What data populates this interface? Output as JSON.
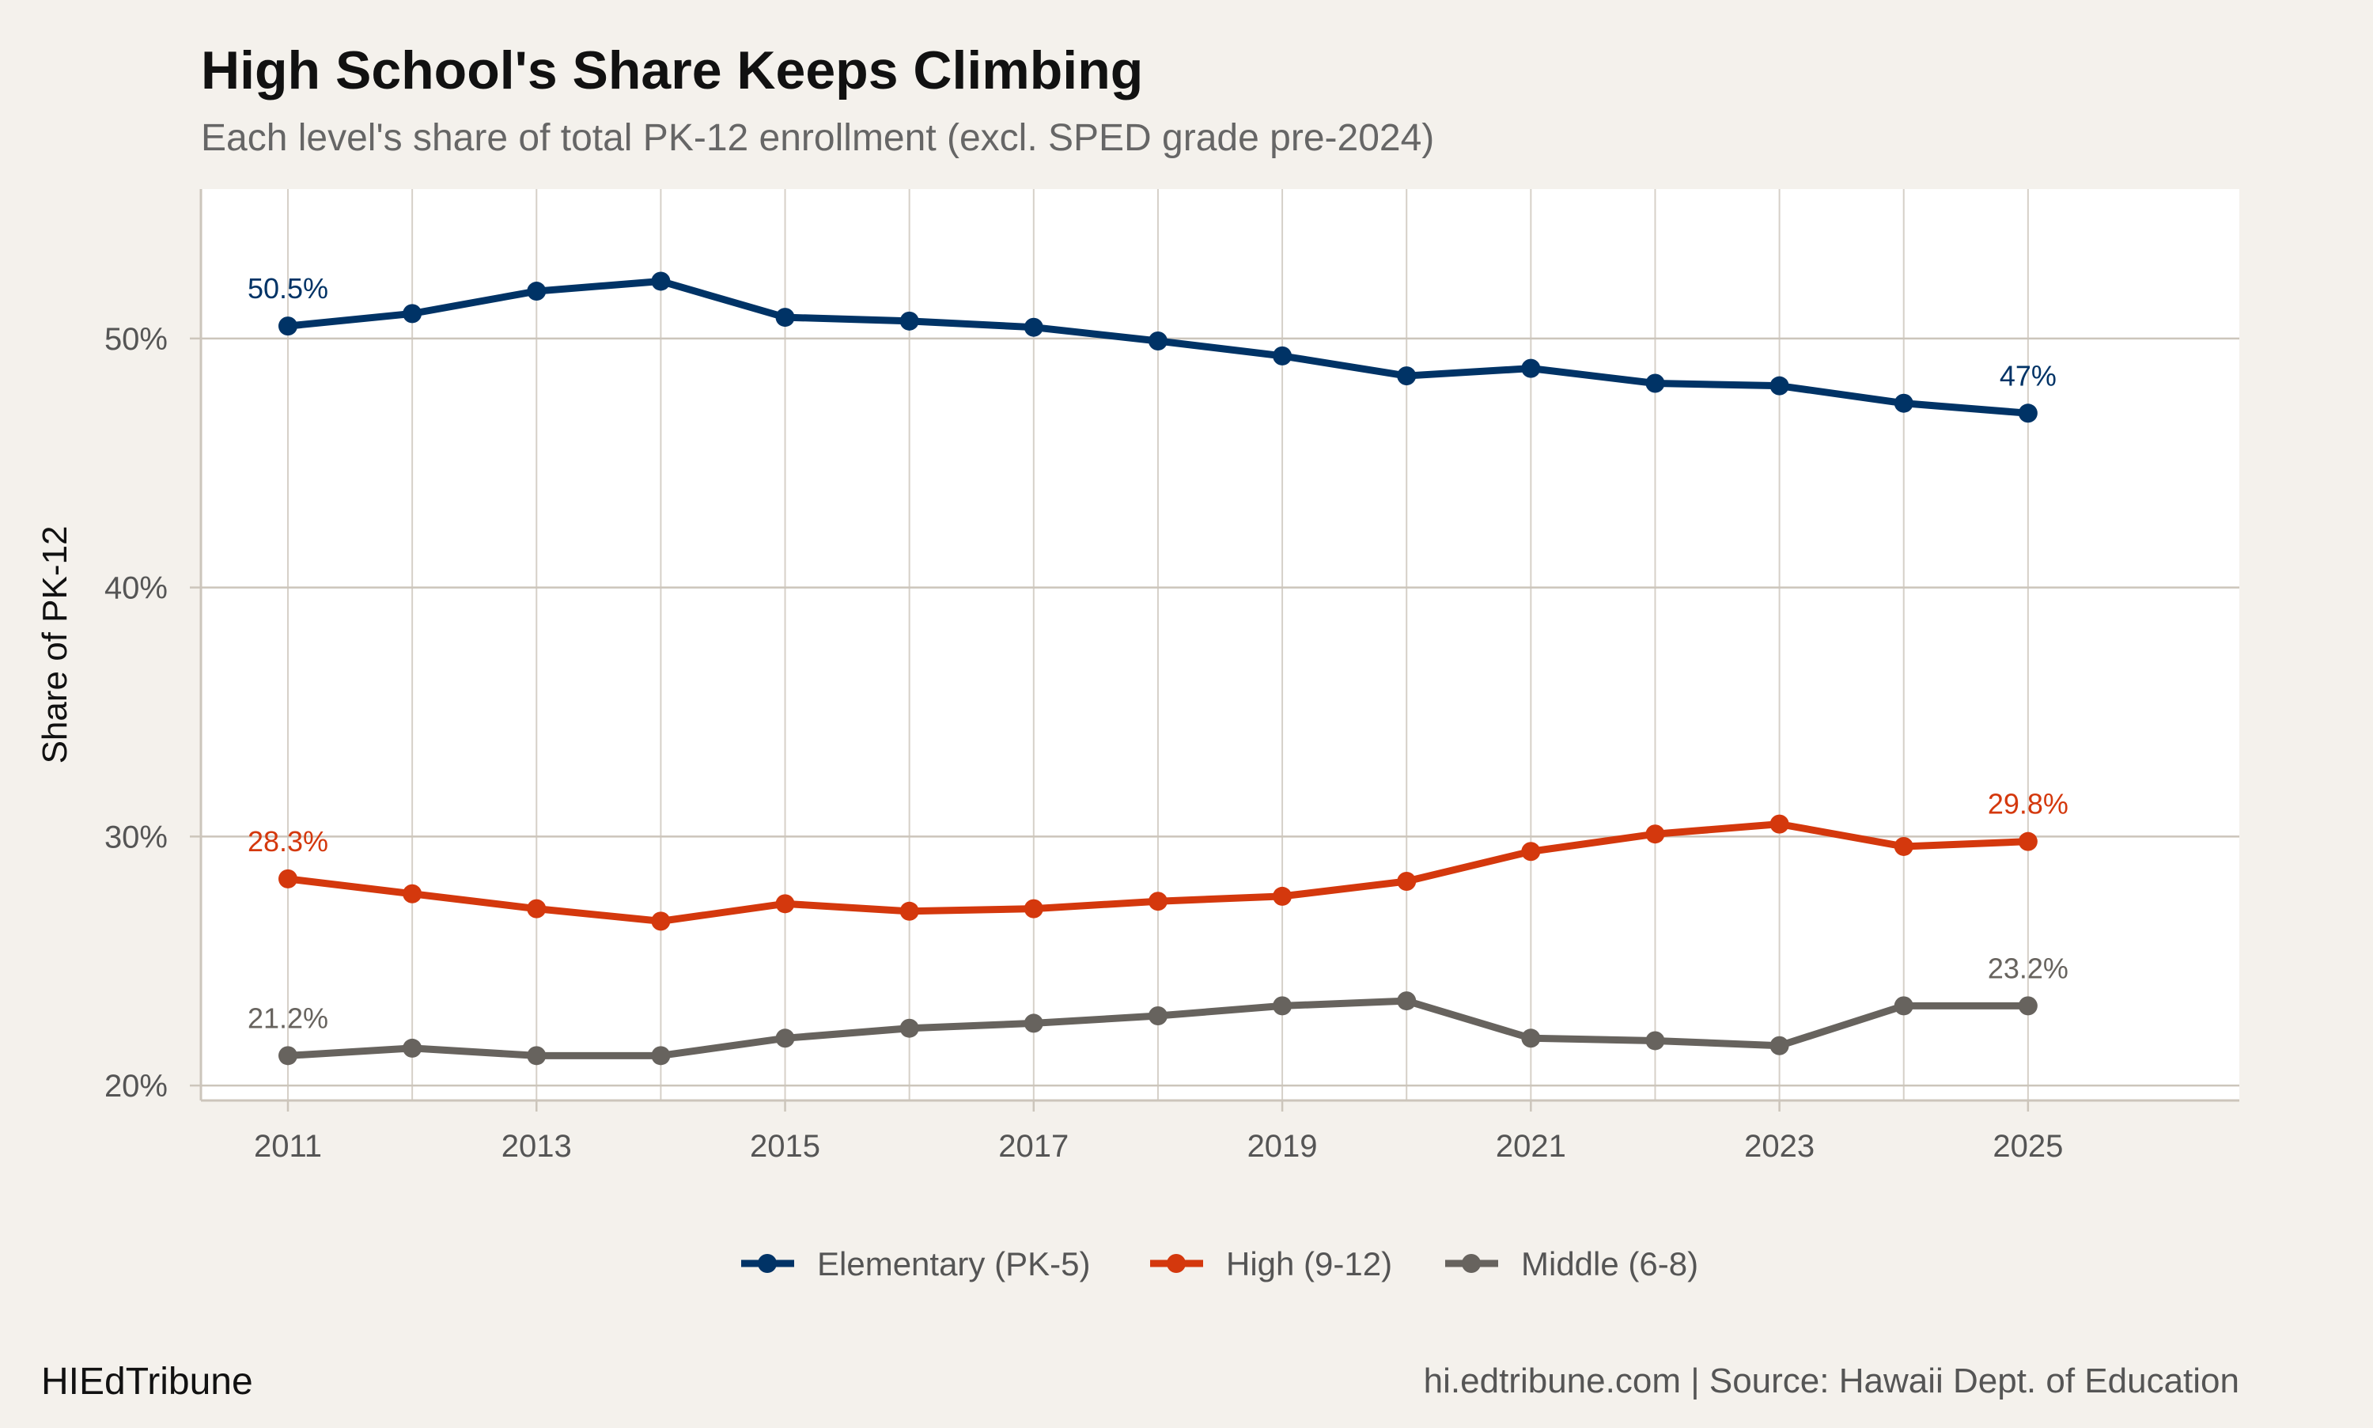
{
  "chart_data": {
    "type": "line",
    "title": "High School's Share Keeps Climbing",
    "subtitle": "Each level's share of total PK-12 enrollment (excl. SPED grade pre-2024)",
    "xlabel": "",
    "ylabel": "Share of PK-12",
    "x": [
      2011,
      2012,
      2013,
      2014,
      2015,
      2016,
      2017,
      2018,
      2019,
      2020,
      2021,
      2022,
      2023,
      2024,
      2025
    ],
    "x_ticks": [
      2011,
      2013,
      2015,
      2017,
      2019,
      2021,
      2023,
      2025
    ],
    "y_ticks": [
      20,
      30,
      40,
      50
    ],
    "y_tick_labels": [
      "20%",
      "30%",
      "40%",
      "50%"
    ],
    "xlim": [
      2010.3,
      2026.7
    ],
    "ylim": [
      19.4,
      56
    ],
    "grid": true,
    "legend_position": "bottom",
    "series": [
      {
        "name": "Elementary (PK-5)",
        "color": "#003366",
        "values": [
          50.5,
          51.0,
          51.9,
          52.3,
          50.85,
          50.7,
          50.45,
          49.9,
          49.3,
          48.5,
          48.8,
          48.2,
          48.1,
          47.4,
          47.0
        ],
        "labels": {
          "first": "50.5%",
          "last": "47%"
        }
      },
      {
        "name": "High (9-12)",
        "color": "#d4380d",
        "values": [
          28.3,
          27.7,
          27.1,
          26.6,
          27.3,
          27.0,
          27.1,
          27.4,
          27.6,
          28.2,
          29.4,
          30.1,
          30.5,
          29.6,
          29.8
        ],
        "labels": {
          "first": "28.3%",
          "last": "29.8%"
        }
      },
      {
        "name": "Middle (6-8)",
        "color": "#67635e",
        "values": [
          21.2,
          21.5,
          21.2,
          21.2,
          21.9,
          22.3,
          22.5,
          22.8,
          23.2,
          23.4,
          21.9,
          21.8,
          21.6,
          23.2,
          23.2
        ],
        "labels": {
          "first": "21.2%",
          "last": "23.2%"
        }
      }
    ]
  },
  "footer": {
    "brand": "HIEdTribune",
    "source": "hi.edtribune.com | Source: Hawaii Dept. of Education"
  }
}
